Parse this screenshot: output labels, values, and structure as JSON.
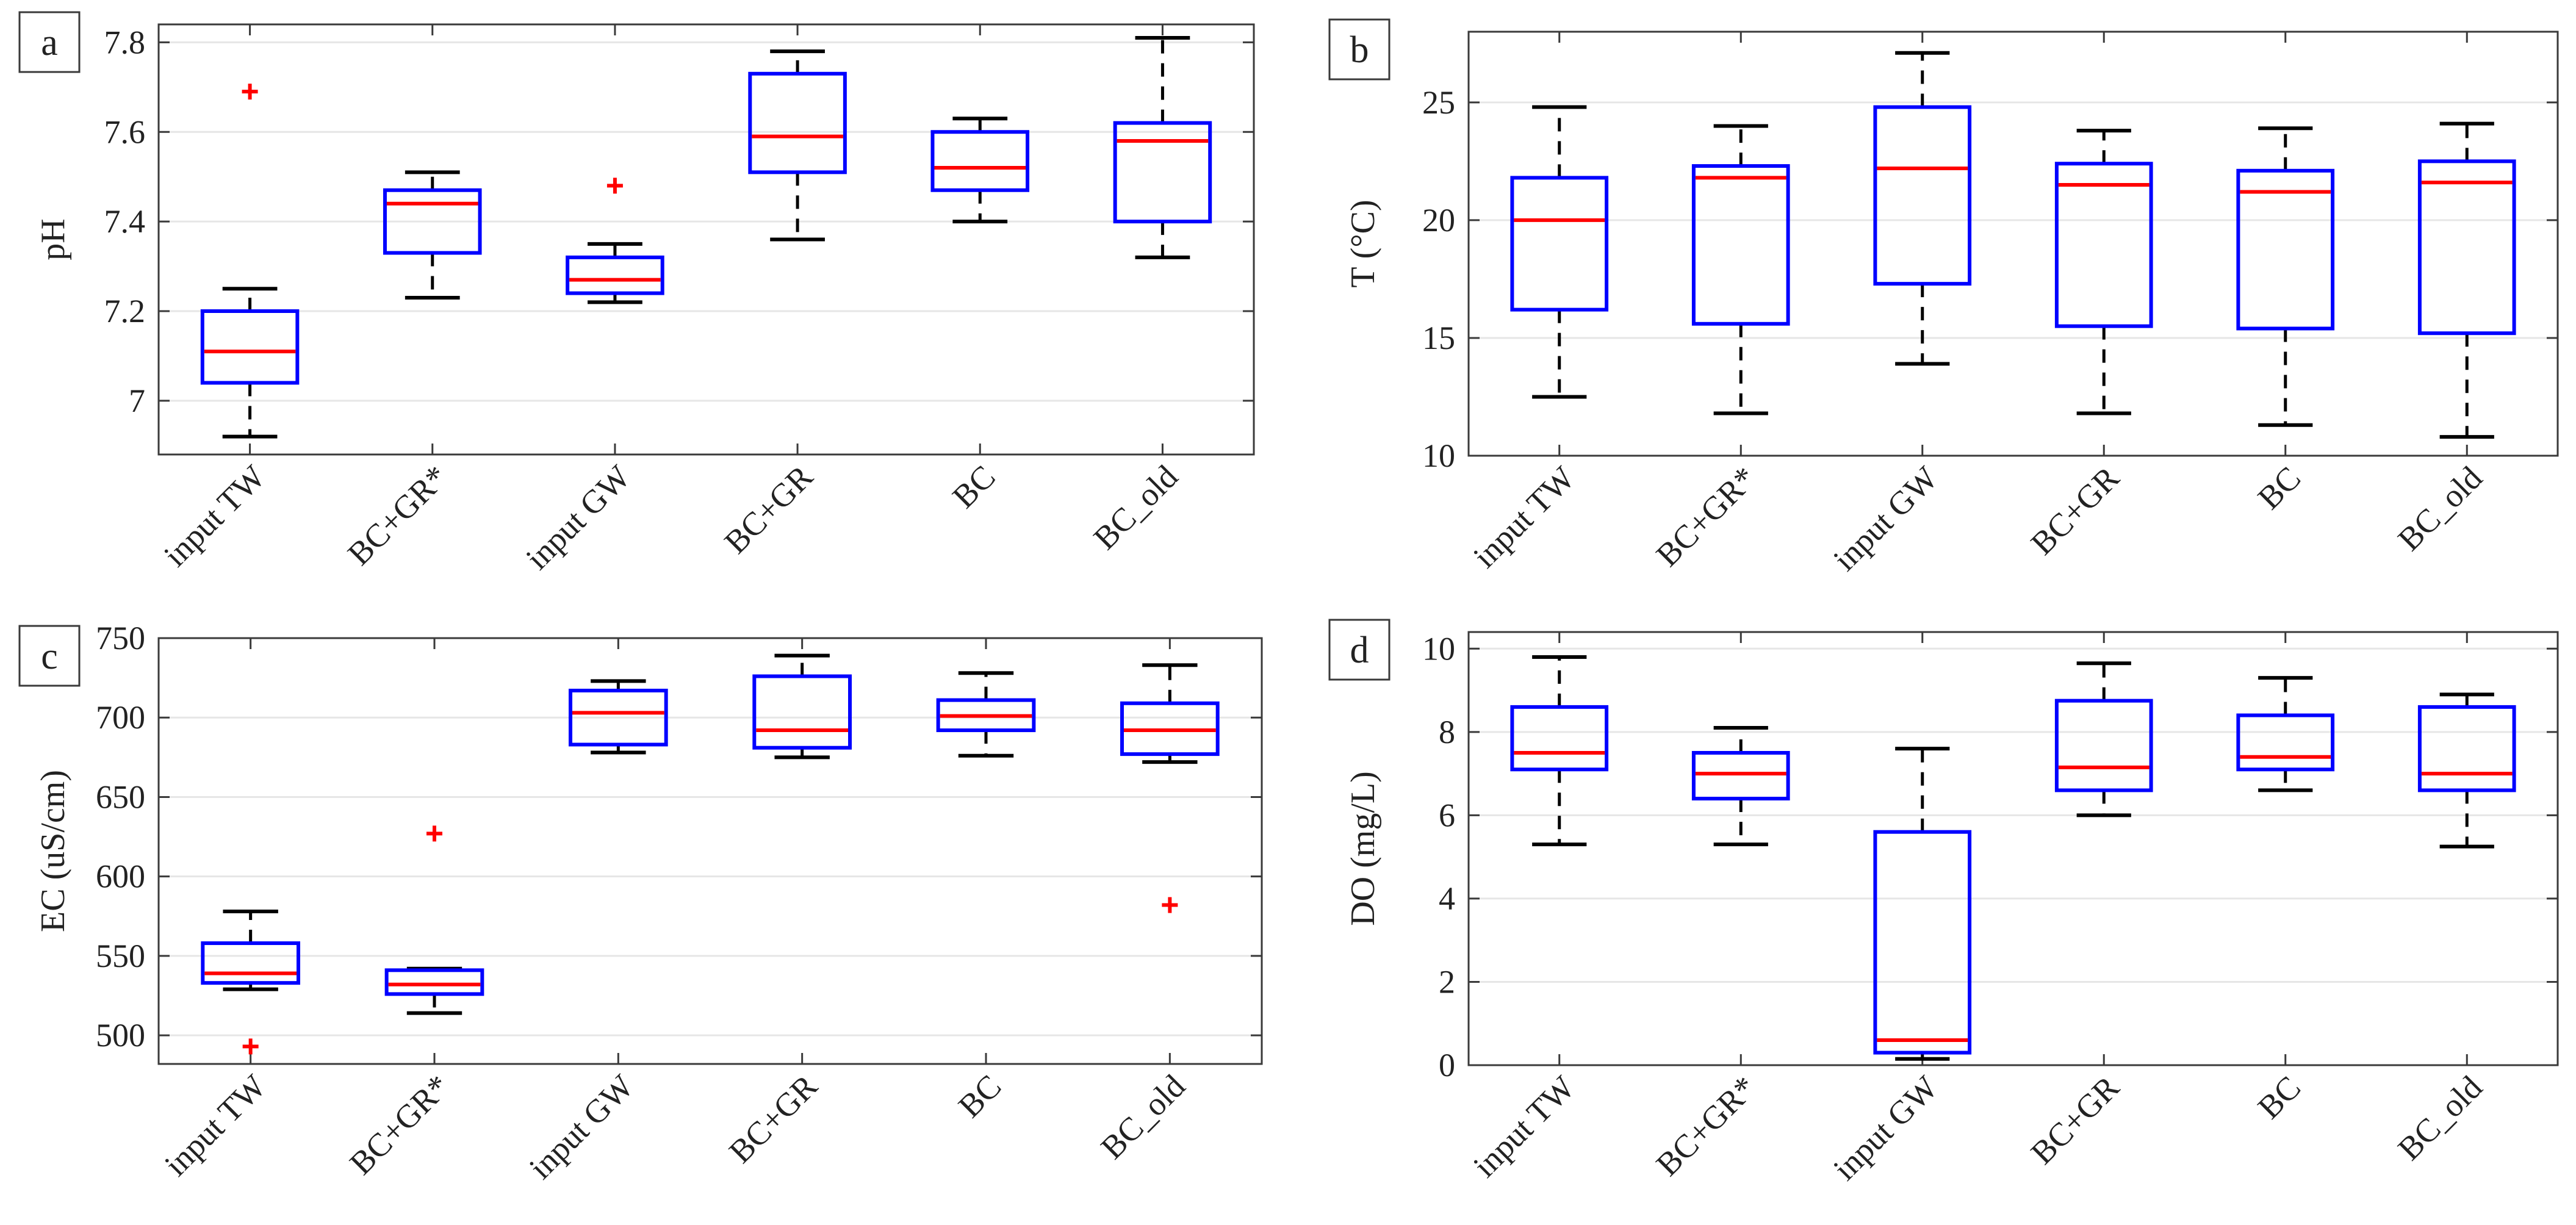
{
  "colors": {
    "box": "#0000ff",
    "median": "#ff0000",
    "outlier": "#ff0000",
    "whisker": "#000000",
    "axis": "#3a3a3a",
    "grid": "#e6e6e6"
  },
  "chart_data": [
    {
      "type": "boxplot",
      "panel_label": "a",
      "ylabel": "pH",
      "xlabel": "",
      "ylim": [
        6.88,
        7.84
      ],
      "yticks": [
        7,
        7.2,
        7.4,
        7.6,
        7.8
      ],
      "ytick_labels": [
        "7",
        "7.2",
        "7.4",
        "7.6",
        "7.8"
      ],
      "grid": true,
      "categories": [
        "input TW",
        "BC+GR*",
        "input GW",
        "BC+GR",
        "BC",
        "BC_old"
      ],
      "boxes": [
        {
          "whisker_low": 6.92,
          "q1": 7.04,
          "median": 7.11,
          "q3": 7.2,
          "whisker_high": 7.25,
          "outliers": [
            7.69
          ]
        },
        {
          "whisker_low": 7.23,
          "q1": 7.33,
          "median": 7.44,
          "q3": 7.47,
          "whisker_high": 7.51,
          "outliers": []
        },
        {
          "whisker_low": 7.22,
          "q1": 7.24,
          "median": 7.27,
          "q3": 7.32,
          "whisker_high": 7.35,
          "outliers": [
            7.48
          ]
        },
        {
          "whisker_low": 7.36,
          "q1": 7.51,
          "median": 7.59,
          "q3": 7.73,
          "whisker_high": 7.78,
          "outliers": []
        },
        {
          "whisker_low": 7.4,
          "q1": 7.47,
          "median": 7.52,
          "q3": 7.6,
          "whisker_high": 7.63,
          "outliers": []
        },
        {
          "whisker_low": 7.32,
          "q1": 7.4,
          "median": 7.58,
          "q3": 7.62,
          "whisker_high": 7.81,
          "outliers": []
        }
      ]
    },
    {
      "type": "boxplot",
      "panel_label": "b",
      "ylabel": "T (°C)",
      "xlabel": "",
      "ylim": [
        10,
        28
      ],
      "yticks": [
        10,
        15,
        20,
        25
      ],
      "ytick_labels": [
        "10",
        "15",
        "20",
        "25"
      ],
      "grid": true,
      "categories": [
        "input TW",
        "BC+GR*",
        "input GW",
        "BC+GR",
        "BC",
        "BC_old"
      ],
      "boxes": [
        {
          "whisker_low": 12.5,
          "q1": 16.2,
          "median": 20.0,
          "q3": 21.8,
          "whisker_high": 24.8,
          "outliers": []
        },
        {
          "whisker_low": 11.8,
          "q1": 15.6,
          "median": 21.8,
          "q3": 22.3,
          "whisker_high": 24.0,
          "outliers": []
        },
        {
          "whisker_low": 13.9,
          "q1": 17.3,
          "median": 22.2,
          "q3": 24.8,
          "whisker_high": 27.1,
          "outliers": []
        },
        {
          "whisker_low": 11.8,
          "q1": 15.5,
          "median": 21.5,
          "q3": 22.4,
          "whisker_high": 23.8,
          "outliers": []
        },
        {
          "whisker_low": 11.3,
          "q1": 15.4,
          "median": 21.2,
          "q3": 22.1,
          "whisker_high": 23.9,
          "outliers": []
        },
        {
          "whisker_low": 10.8,
          "q1": 15.2,
          "median": 21.6,
          "q3": 22.5,
          "whisker_high": 24.1,
          "outliers": []
        }
      ]
    },
    {
      "type": "boxplot",
      "panel_label": "c",
      "ylabel": "EC (uS/cm)",
      "xlabel": "",
      "ylim": [
        482,
        750
      ],
      "yticks": [
        500,
        550,
        600,
        650,
        700,
        750
      ],
      "ytick_labels": [
        "500",
        "550",
        "600",
        "650",
        "700",
        "750"
      ],
      "grid": true,
      "categories": [
        "input TW",
        "BC+GR*",
        "input GW",
        "BC+GR",
        "BC",
        "BC_old"
      ],
      "boxes": [
        {
          "whisker_low": 529,
          "q1": 533,
          "median": 539,
          "q3": 558,
          "whisker_high": 578,
          "outliers": [
            493
          ]
        },
        {
          "whisker_low": 514,
          "q1": 526,
          "median": 532,
          "q3": 541,
          "whisker_high": 542,
          "outliers": [
            627
          ]
        },
        {
          "whisker_low": 678,
          "q1": 683,
          "median": 703,
          "q3": 717,
          "whisker_high": 723,
          "outliers": []
        },
        {
          "whisker_low": 675,
          "q1": 681,
          "median": 692,
          "q3": 726,
          "whisker_high": 739,
          "outliers": []
        },
        {
          "whisker_low": 676,
          "q1": 692,
          "median": 701,
          "q3": 711,
          "whisker_high": 728,
          "outliers": []
        },
        {
          "whisker_low": 672,
          "q1": 677,
          "median": 692,
          "q3": 709,
          "whisker_high": 733,
          "outliers": [
            582
          ]
        }
      ]
    },
    {
      "type": "boxplot",
      "panel_label": "d",
      "ylabel": "DO (mg/L)",
      "xlabel": "",
      "ylim": [
        0,
        10.4
      ],
      "yticks": [
        0,
        2,
        4,
        6,
        8,
        10
      ],
      "ytick_labels": [
        "0",
        "2",
        "4",
        "6",
        "8",
        "10"
      ],
      "grid": true,
      "categories": [
        "input TW",
        "BC+GR*",
        "input GW",
        "BC+GR",
        "BC",
        "BC_old"
      ],
      "boxes": [
        {
          "whisker_low": 5.3,
          "q1": 7.1,
          "median": 7.5,
          "q3": 8.6,
          "whisker_high": 9.8,
          "outliers": []
        },
        {
          "whisker_low": 5.3,
          "q1": 6.4,
          "median": 7.0,
          "q3": 7.5,
          "whisker_high": 8.1,
          "outliers": []
        },
        {
          "whisker_low": 0.15,
          "q1": 0.3,
          "median": 0.6,
          "q3": 5.6,
          "whisker_high": 7.6,
          "outliers": []
        },
        {
          "whisker_low": 6.0,
          "q1": 6.6,
          "median": 7.15,
          "q3": 8.75,
          "whisker_high": 9.65,
          "outliers": []
        },
        {
          "whisker_low": 6.6,
          "q1": 7.1,
          "median": 7.4,
          "q3": 8.4,
          "whisker_high": 9.3,
          "outliers": []
        },
        {
          "whisker_low": 5.25,
          "q1": 6.6,
          "median": 7.0,
          "q3": 8.6,
          "whisker_high": 8.9,
          "outliers": []
        }
      ]
    }
  ]
}
